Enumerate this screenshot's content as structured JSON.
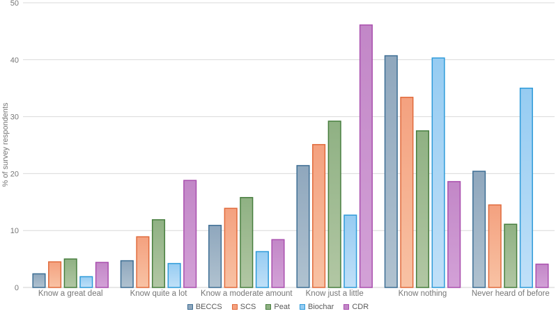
{
  "chart_data": {
    "type": "bar",
    "title": "",
    "xlabel": "",
    "ylabel": "% of survey respondents",
    "ylim": [
      0,
      50
    ],
    "yticks": [
      0,
      10,
      20,
      30,
      40,
      50
    ],
    "grid": true,
    "legend_position": "bottom",
    "categories": [
      "Know a great deal",
      "Know quite a lot",
      "Know a moderate amount",
      "Know just a little",
      "Know nothing",
      "Never heard of before"
    ],
    "series": [
      {
        "name": "BECCS",
        "values": [
          2.4,
          4.7,
          10.9,
          21.4,
          40.7,
          20.4
        ],
        "fill": "#8fa7bd",
        "fill_light": "#b0c2d0",
        "stroke": "#3d6e94"
      },
      {
        "name": "SCS",
        "values": [
          4.5,
          8.9,
          13.9,
          25.1,
          33.4,
          14.5
        ],
        "fill": "#f4a17f",
        "fill_light": "#f8c2a4",
        "stroke": "#e06a3b"
      },
      {
        "name": "Peat",
        "values": [
          5.0,
          11.9,
          15.8,
          29.2,
          27.5,
          11.1
        ],
        "fill": "#8fb183",
        "fill_light": "#b2c7a4",
        "stroke": "#477e3e"
      },
      {
        "name": "Biochar",
        "values": [
          1.9,
          4.2,
          6.3,
          12.7,
          40.3,
          35.0
        ],
        "fill": "#96ccf2",
        "fill_light": "#c0e0f8",
        "stroke": "#2d9ad9"
      },
      {
        "name": "CDR",
        "values": [
          4.4,
          18.8,
          8.4,
          46.1,
          18.6,
          4.1
        ],
        "fill": "#c287c7",
        "fill_light": "#d3a1d7",
        "stroke": "#a94fae"
      }
    ],
    "colors": {
      "gridline": "#d9d9d9",
      "axis_line": "#cfcfcf",
      "tick_label": "#767676",
      "axis_title": "#767676",
      "legend_text": "#595959"
    }
  }
}
